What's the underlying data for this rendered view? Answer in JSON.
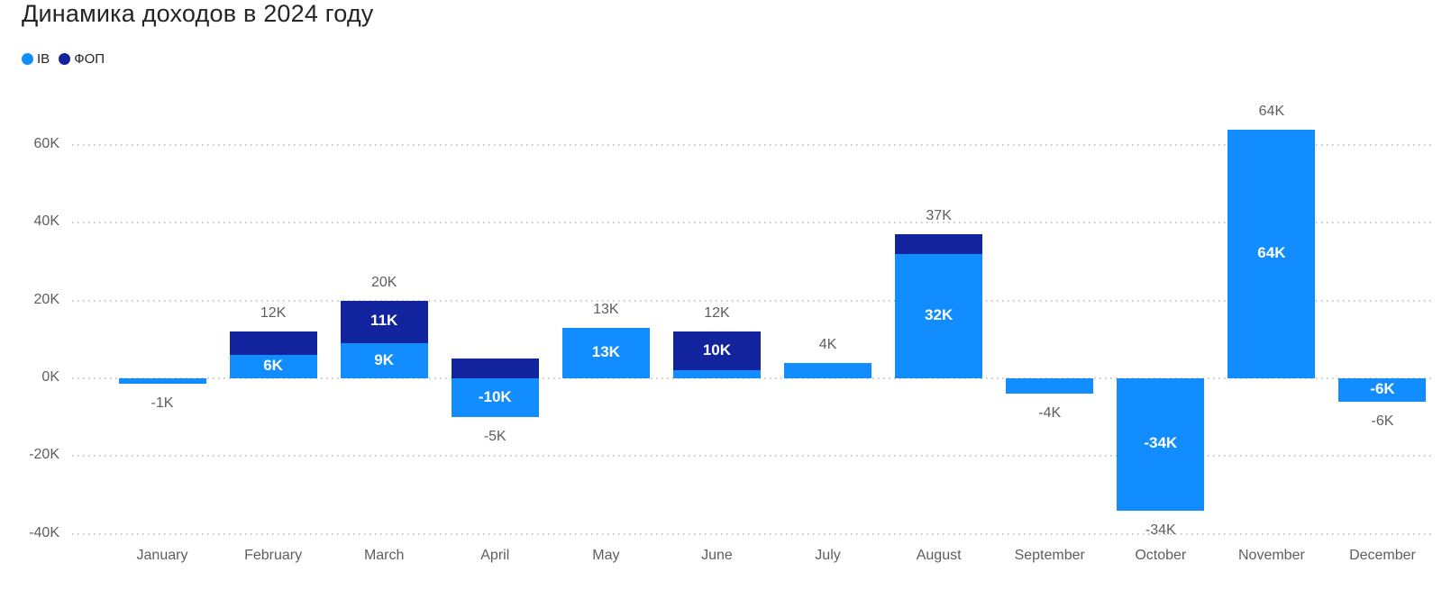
{
  "title": "Динамика доходов в 2024 году",
  "legend": {
    "items": [
      {
        "label": "ІВ",
        "color": "#118DFF"
      },
      {
        "label": "ФОП",
        "color": "#12239E"
      }
    ]
  },
  "chart_data": {
    "type": "bar",
    "variant": "stacked-column",
    "title": "Динамика доходов в 2024 году",
    "unit": "K",
    "grid": {
      "style": "dotted-horizontal",
      "color": "#C8C6C4"
    },
    "legend_position": "top-left",
    "categories": [
      "January",
      "February",
      "March",
      "April",
      "May",
      "June",
      "July",
      "August",
      "September",
      "October",
      "November",
      "December"
    ],
    "series": [
      {
        "name": "ІВ",
        "color": "#118DFF",
        "values": [
          -1,
          6,
          9,
          -10,
          13,
          2,
          4,
          32,
          -4,
          -34,
          64,
          -6
        ],
        "segment_labels": [
          "",
          "6K",
          "9K",
          "-10K",
          "13K",
          "",
          "",
          "32K",
          "",
          "-34K",
          "64K",
          "-6K"
        ]
      },
      {
        "name": "ФОП",
        "color": "#12239E",
        "values": [
          0,
          6,
          11,
          5,
          0,
          10,
          0,
          5,
          0,
          0,
          0,
          0
        ],
        "segment_labels": [
          "",
          "",
          "11K",
          "",
          "",
          "10K",
          "",
          "",
          "",
          "",
          "",
          ""
        ]
      }
    ],
    "totals": [
      -1,
      12,
      20,
      -5,
      13,
      12,
      4,
      37,
      -4,
      -34,
      64,
      -6
    ],
    "total_labels": [
      "-1K",
      "12K",
      "20K",
      "-5K",
      "13K",
      "12K",
      "4K",
      "37K",
      "-4K",
      "-34K",
      "64K",
      "-6K"
    ],
    "y_axis": {
      "ticks": [
        {
          "value": 60,
          "label": "60K"
        },
        {
          "value": 40,
          "label": "40K"
        },
        {
          "value": 20,
          "label": "20K"
        },
        {
          "value": 0,
          "label": "0K"
        },
        {
          "value": -20,
          "label": "-20K"
        },
        {
          "value": -40,
          "label": "-40K"
        }
      ],
      "range": [
        -46,
        68
      ]
    },
    "colors": {
      "label_inside": "#FFFFFF",
      "label_outside": "#605E5C",
      "axis_text": "#605E5C",
      "title_text": "#252423",
      "background": "#FFFFFF"
    }
  }
}
